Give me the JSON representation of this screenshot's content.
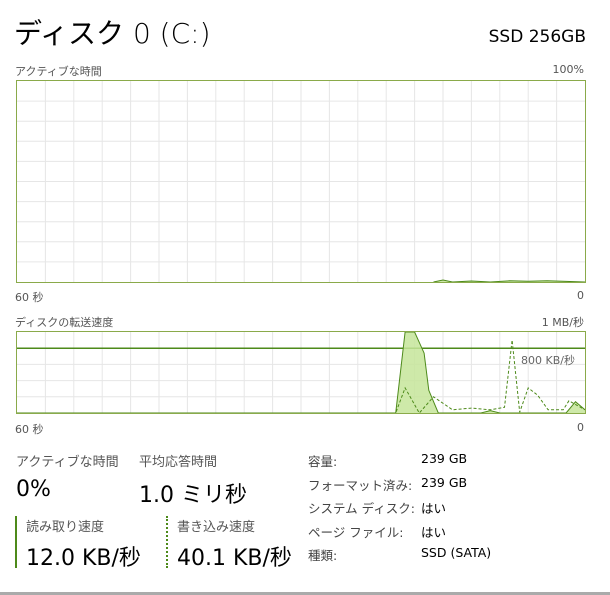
{
  "header": {
    "title": "ディスク 0 (C:)",
    "model": "SSD 256GB"
  },
  "active_graph": {
    "label": "アクティブな時間",
    "max": "100%",
    "x_left": "60 秒",
    "x_right": "0",
    "chart_data": {
      "type": "area",
      "x_unit": "seconds ago",
      "ylim": [
        0,
        100
      ],
      "points": [
        [
          16,
          0
        ],
        [
          15,
          1
        ],
        [
          14,
          0
        ],
        [
          12,
          0.5
        ],
        [
          10,
          0
        ],
        [
          8,
          0.6
        ],
        [
          6,
          0.4
        ],
        [
          4,
          0.6
        ],
        [
          2,
          0.3
        ],
        [
          0,
          0
        ]
      ]
    }
  },
  "transfer_graph": {
    "label": "ディスクの転送速度",
    "max": "1 MB/秒",
    "marker": "800 KB/秒",
    "x_left": "60 秒",
    "x_right": "0",
    "chart_data": {
      "type": "line",
      "x_unit": "seconds ago",
      "ylim": [
        0,
        1000
      ],
      "reference_line": 800,
      "series": [
        {
          "style": "solid-filled",
          "points": [
            [
              60,
              0
            ],
            [
              20,
              0
            ],
            [
              19,
              1000
            ],
            [
              18,
              1000
            ],
            [
              17,
              740
            ],
            [
              16.5,
              280
            ],
            [
              15.5,
              0
            ],
            [
              11,
              0
            ],
            [
              10,
              30
            ],
            [
              9,
              0
            ],
            [
              2,
              0
            ],
            [
              1,
              140
            ],
            [
              0,
              40
            ]
          ]
        },
        {
          "style": "dashed",
          "points": [
            [
              60,
              0
            ],
            [
              20,
              0
            ],
            [
              19,
              310
            ],
            [
              17.5,
              0
            ],
            [
              16,
              200
            ],
            [
              14,
              40
            ],
            [
              12,
              60
            ],
            [
              10,
              40
            ],
            [
              8.5,
              70
            ],
            [
              7.7,
              900
            ],
            [
              6.9,
              10
            ],
            [
              6,
              310
            ],
            [
              5,
              220
            ],
            [
              3.9,
              40
            ],
            [
              2.3,
              40
            ],
            [
              1.7,
              150
            ],
            [
              0,
              40
            ]
          ]
        }
      ]
    }
  },
  "stats": {
    "active_label": "アクティブな時間",
    "active_value": "0%",
    "response_label": "平均応答時間",
    "response_value": "1.0 ミリ秒",
    "read_label": "読み取り速度",
    "read_value": "12.0 KB/秒",
    "write_label": "書き込み速度",
    "write_value": "40.1 KB/秒"
  },
  "info": [
    {
      "k": "容量:",
      "v": "239 GB"
    },
    {
      "k": "フォーマット済み:",
      "v": "239 GB"
    },
    {
      "k": "システム ディスク:",
      "v": "はい"
    },
    {
      "k": "ページ ファイル:",
      "v": "はい"
    },
    {
      "k": "種類:",
      "v": "SSD (SATA)"
    }
  ],
  "colors": {
    "accent": "#4d8a1a",
    "fill": "#c6e59a",
    "grid": "#e6e6e6"
  }
}
